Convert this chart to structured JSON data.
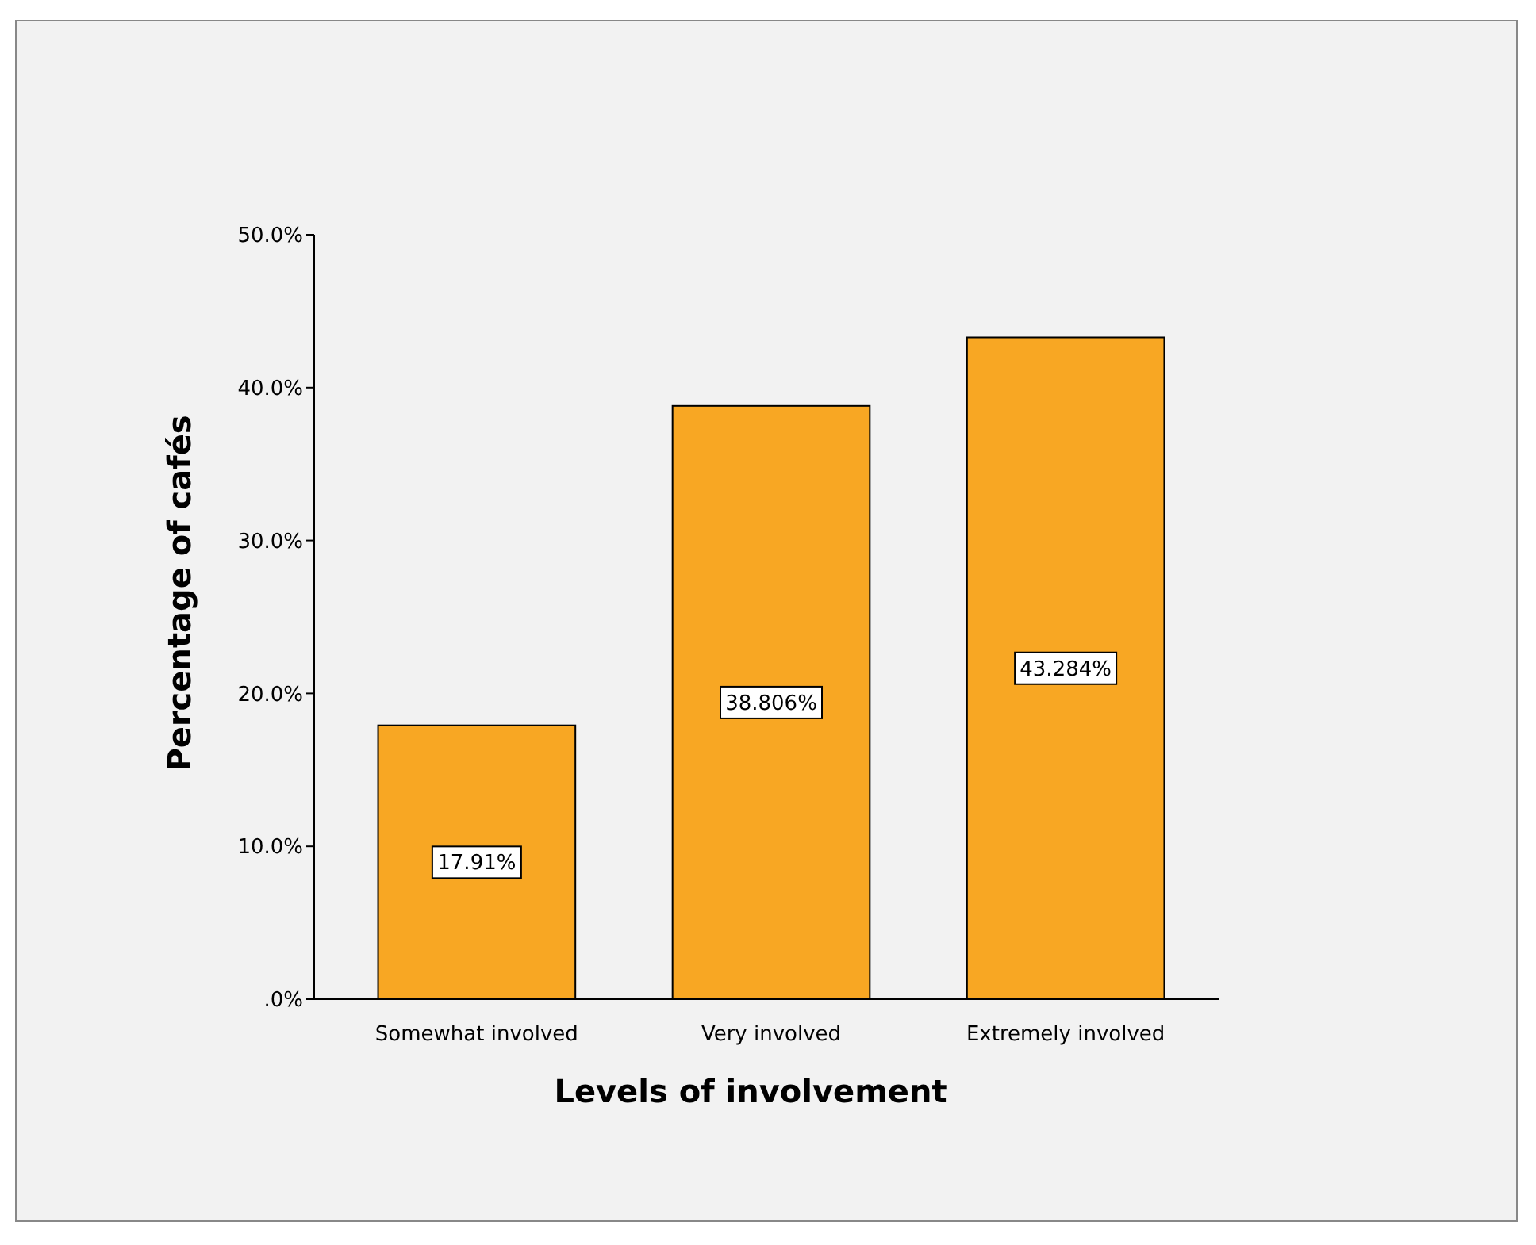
{
  "chart_data": {
    "type": "bar",
    "xlabel": "Levels of involvement",
    "ylabel": "Percentage of cafés",
    "categories": [
      "Somewhat involved",
      "Very involved",
      "Extremely involved"
    ],
    "values": [
      17.91,
      38.806,
      43.284
    ],
    "value_labels": [
      "17.91%",
      "38.806%",
      "43.284%"
    ],
    "color": "#f8a723",
    "ylim": [
      0,
      50
    ],
    "yticks": [
      {
        "value": 0,
        "label": ".0%"
      },
      {
        "value": 10,
        "label": "10.0%"
      },
      {
        "value": 20,
        "label": "20.0%"
      },
      {
        "value": 30,
        "label": "30.0%"
      },
      {
        "value": 40,
        "label": "40.0%"
      },
      {
        "value": 50,
        "label": "50.0%"
      }
    ],
    "grid": false
  }
}
